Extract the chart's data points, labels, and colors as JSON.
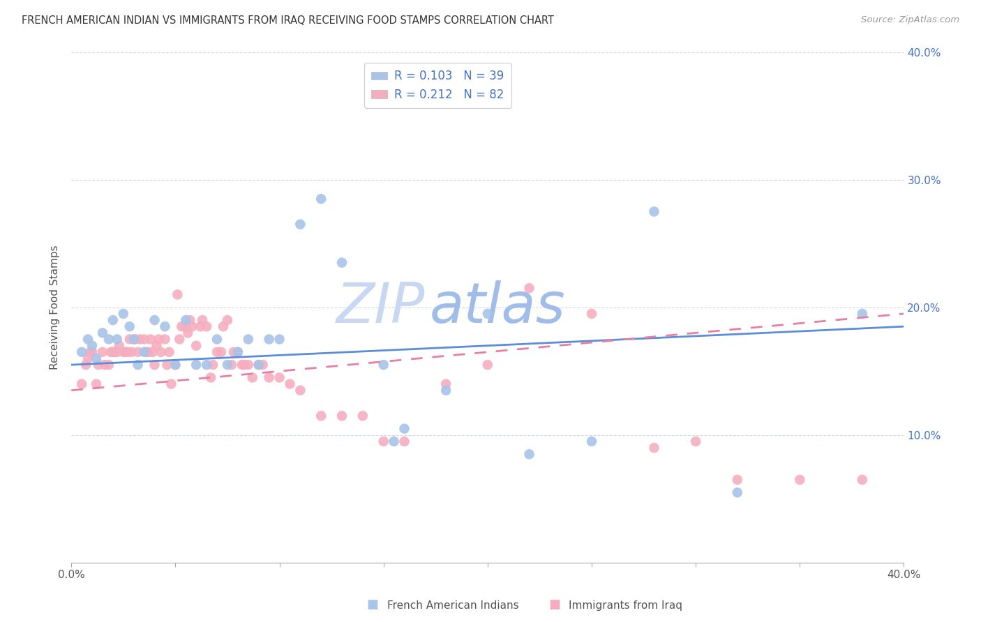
{
  "title": "FRENCH AMERICAN INDIAN VS IMMIGRANTS FROM IRAQ RECEIVING FOOD STAMPS CORRELATION CHART",
  "source": "Source: ZipAtlas.com",
  "ylabel": "Receiving Food Stamps",
  "xlim": [
    0.0,
    0.4
  ],
  "ylim": [
    0.0,
    0.4
  ],
  "yticks": [
    0.0,
    0.1,
    0.2,
    0.3,
    0.4
  ],
  "ytick_labels": [
    "",
    "10.0%",
    "20.0%",
    "30.0%",
    "40.0%"
  ],
  "legend_r1": "R = 0.103",
  "legend_n1": "N = 39",
  "legend_r2": "R = 0.212",
  "legend_n2": "N = 82",
  "series1_color": "#a8c4e8",
  "series2_color": "#f5aec0",
  "trendline1_color": "#5b8dd9",
  "trendline2_color": "#e87fa0",
  "watermark_zip": "ZIP",
  "watermark_atlas": "atlas",
  "watermark_color_zip": "#c8d8f2",
  "watermark_color_atlas": "#a0bce8",
  "bottom_legend1": "French American Indians",
  "bottom_legend2": "Immigrants from Iraq",
  "series1_x": [
    0.005,
    0.008,
    0.01,
    0.012,
    0.015,
    0.018,
    0.02,
    0.022,
    0.025,
    0.028,
    0.03,
    0.032,
    0.035,
    0.04,
    0.045,
    0.05,
    0.055,
    0.06,
    0.065,
    0.07,
    0.075,
    0.08,
    0.085,
    0.09,
    0.095,
    0.1,
    0.11,
    0.12,
    0.13,
    0.15,
    0.155,
    0.16,
    0.18,
    0.2,
    0.22,
    0.25,
    0.28,
    0.32,
    0.38
  ],
  "series1_y": [
    0.165,
    0.175,
    0.17,
    0.16,
    0.18,
    0.175,
    0.19,
    0.175,
    0.195,
    0.185,
    0.175,
    0.155,
    0.165,
    0.19,
    0.185,
    0.155,
    0.19,
    0.155,
    0.155,
    0.175,
    0.155,
    0.165,
    0.175,
    0.155,
    0.175,
    0.175,
    0.265,
    0.285,
    0.235,
    0.155,
    0.095,
    0.105,
    0.135,
    0.195,
    0.085,
    0.095,
    0.275,
    0.055,
    0.195
  ],
  "series2_x": [
    0.005,
    0.007,
    0.008,
    0.009,
    0.01,
    0.012,
    0.013,
    0.015,
    0.016,
    0.018,
    0.019,
    0.02,
    0.021,
    0.022,
    0.023,
    0.025,
    0.026,
    0.027,
    0.028,
    0.029,
    0.03,
    0.031,
    0.032,
    0.033,
    0.035,
    0.036,
    0.037,
    0.038,
    0.039,
    0.04,
    0.041,
    0.042,
    0.043,
    0.045,
    0.046,
    0.047,
    0.048,
    0.05,
    0.051,
    0.052,
    0.053,
    0.055,
    0.056,
    0.057,
    0.058,
    0.06,
    0.062,
    0.063,
    0.065,
    0.067,
    0.068,
    0.07,
    0.072,
    0.073,
    0.075,
    0.077,
    0.078,
    0.08,
    0.082,
    0.083,
    0.085,
    0.087,
    0.09,
    0.092,
    0.095,
    0.1,
    0.105,
    0.11,
    0.12,
    0.13,
    0.14,
    0.15,
    0.16,
    0.18,
    0.2,
    0.22,
    0.25,
    0.28,
    0.3,
    0.32,
    0.35,
    0.38
  ],
  "series2_y": [
    0.14,
    0.155,
    0.16,
    0.165,
    0.165,
    0.14,
    0.155,
    0.165,
    0.155,
    0.155,
    0.165,
    0.165,
    0.165,
    0.165,
    0.17,
    0.165,
    0.165,
    0.165,
    0.175,
    0.165,
    0.175,
    0.175,
    0.165,
    0.175,
    0.175,
    0.165,
    0.165,
    0.175,
    0.165,
    0.155,
    0.17,
    0.175,
    0.165,
    0.175,
    0.155,
    0.165,
    0.14,
    0.155,
    0.21,
    0.175,
    0.185,
    0.185,
    0.18,
    0.19,
    0.185,
    0.17,
    0.185,
    0.19,
    0.185,
    0.145,
    0.155,
    0.165,
    0.165,
    0.185,
    0.19,
    0.155,
    0.165,
    0.165,
    0.155,
    0.155,
    0.155,
    0.145,
    0.155,
    0.155,
    0.145,
    0.145,
    0.14,
    0.135,
    0.115,
    0.115,
    0.115,
    0.095,
    0.095,
    0.14,
    0.155,
    0.215,
    0.195,
    0.09,
    0.095,
    0.065,
    0.065,
    0.065
  ],
  "trendline1_x0": 0.0,
  "trendline1_x1": 0.4,
  "trendline1_y0": 0.155,
  "trendline1_y1": 0.185,
  "trendline2_x0": 0.0,
  "trendline2_x1": 0.4,
  "trendline2_y0": 0.135,
  "trendline2_y1": 0.195
}
